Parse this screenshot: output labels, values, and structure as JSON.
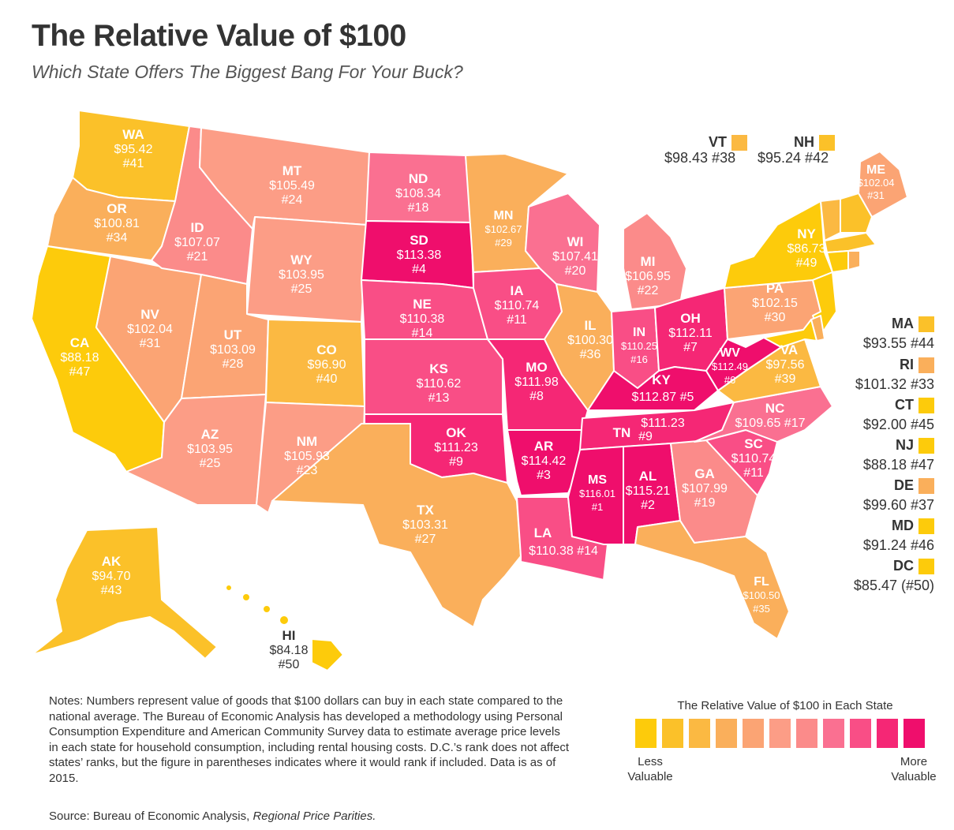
{
  "title": "The Relative Value of $100",
  "subtitle": "Which State Offers The Biggest Bang For Your Buck?",
  "colors": {
    "scale": [
      "#fdcb0b",
      "#fbc129",
      "#fbb942",
      "#faaf5b",
      "#fba474",
      "#fc9d86",
      "#fb8b8a",
      "#fa7091",
      "#f94e86",
      "#f52775",
      "#ef0e6c"
    ],
    "border": "#ffffff"
  },
  "states": {
    "WA": {
      "abbr": "WA",
      "value": "$95.42",
      "rank": "#41",
      "color": "#fbc129"
    },
    "OR": {
      "abbr": "OR",
      "value": "$100.81",
      "rank": "#34",
      "color": "#faaf5b"
    },
    "CA": {
      "abbr": "CA",
      "value": "$88.18",
      "rank": "#47",
      "color": "#fdcb0b"
    },
    "ID": {
      "abbr": "ID",
      "value": "$107.07",
      "rank": "#21",
      "color": "#fb8b8a"
    },
    "NV": {
      "abbr": "NV",
      "value": "$102.04",
      "rank": "#31",
      "color": "#fba474"
    },
    "MT": {
      "abbr": "MT",
      "value": "$105.49",
      "rank": "#24",
      "color": "#fc9d86"
    },
    "WY": {
      "abbr": "WY",
      "value": "$103.95",
      "rank": "#25",
      "color": "#fc9d86"
    },
    "UT": {
      "abbr": "UT",
      "value": "$103.09",
      "rank": "#28",
      "color": "#fba474"
    },
    "AZ": {
      "abbr": "AZ",
      "value": "$103.95",
      "rank": "#25",
      "color": "#fc9d86"
    },
    "CO": {
      "abbr": "CO",
      "value": "$96.90",
      "rank": "#40",
      "color": "#fbb942"
    },
    "NM": {
      "abbr": "NM",
      "value": "$105.93",
      "rank": "#23",
      "color": "#fc9d86"
    },
    "ND": {
      "abbr": "ND",
      "value": "$108.34",
      "rank": "#18",
      "color": "#fa7091"
    },
    "SD": {
      "abbr": "SD",
      "value": "$113.38",
      "rank": "#4",
      "color": "#ef0e6c"
    },
    "NE": {
      "abbr": "NE",
      "value": "$110.38",
      "rank": "#14",
      "color": "#f94e86"
    },
    "KS": {
      "abbr": "KS",
      "value": "$110.62",
      "rank": "#13",
      "color": "#f94e86"
    },
    "OK": {
      "abbr": "OK",
      "value": "$111.23",
      "rank": "#9",
      "color": "#f52775"
    },
    "TX": {
      "abbr": "TX",
      "value": "$103.31",
      "rank": "#27",
      "color": "#faaf5b"
    },
    "MN": {
      "abbr": "MN",
      "value": "$102.67",
      "rank": "#29",
      "color": "#faaf5b"
    },
    "IA": {
      "abbr": "IA",
      "value": "$110.74",
      "rank": "#11",
      "color": "#f94e86"
    },
    "MO": {
      "abbr": "MO",
      "value": "$111.98",
      "rank": "#8",
      "color": "#f52775"
    },
    "AR": {
      "abbr": "AR",
      "value": "$114.42",
      "rank": "#3",
      "color": "#ef0e6c"
    },
    "LA": {
      "abbr": "LA",
      "value": "$110.38",
      "rank": "#14",
      "color": "#f94e86"
    },
    "WI": {
      "abbr": "WI",
      "value": "$107.41",
      "rank": "#20",
      "color": "#fa7091"
    },
    "IL": {
      "abbr": "IL",
      "value": "$100.30",
      "rank": "#36",
      "color": "#faaf5b"
    },
    "MI": {
      "abbr": "MI",
      "value": "$106.95",
      "rank": "#22",
      "color": "#fb8b8a"
    },
    "IN": {
      "abbr": "IN",
      "value": "$110.25",
      "rank": "#16",
      "color": "#f94e86"
    },
    "OH": {
      "abbr": "OH",
      "value": "$112.11",
      "rank": "#7",
      "color": "#f52775"
    },
    "KY": {
      "abbr": "KY",
      "value": "$112.87",
      "rank": "#5",
      "color": "#ef0e6c"
    },
    "TN": {
      "abbr": "TN",
      "value": "$111.23",
      "rank": "#9",
      "color": "#f52775"
    },
    "MS": {
      "abbr": "MS",
      "value": "$116.01",
      "rank": "#1",
      "color": "#ef0e6c"
    },
    "AL": {
      "abbr": "AL",
      "value": "$115.21",
      "rank": "#2",
      "color": "#ef0e6c"
    },
    "GA": {
      "abbr": "GA",
      "value": "$107.99",
      "rank": "#19",
      "color": "#fb8b8a"
    },
    "FL": {
      "abbr": "FL",
      "value": "$100.50",
      "rank": "#35",
      "color": "#faaf5b"
    },
    "SC": {
      "abbr": "SC",
      "value": "$110.74",
      "rank": "#11",
      "color": "#f94e86"
    },
    "NC": {
      "abbr": "NC",
      "value": "$109.65",
      "rank": "#17",
      "color": "#fa7091"
    },
    "VA": {
      "abbr": "VA",
      "value": "$97.56",
      "rank": "#39",
      "color": "#fbb942"
    },
    "WV": {
      "abbr": "WV",
      "value": "$112.49",
      "rank": "#6",
      "color": "#ef0e6c"
    },
    "PA": {
      "abbr": "PA",
      "value": "$102.15",
      "rank": "#30",
      "color": "#fba474"
    },
    "NY": {
      "abbr": "NY",
      "value": "$86.73",
      "rank": "#49",
      "color": "#fdcb0b"
    },
    "ME": {
      "abbr": "ME",
      "value": "$102.04",
      "rank": "#31",
      "color": "#fba474"
    },
    "AK": {
      "abbr": "AK",
      "value": "$94.70",
      "rank": "#43",
      "color": "#fbc129"
    },
    "HI": {
      "abbr": "HI",
      "value": "$84.18",
      "rank": "#50",
      "color": "#fdcb0b"
    }
  },
  "small_states": {
    "VT": {
      "abbr": "VT",
      "value_rank": "$98.43 #38",
      "color": "#fbb942"
    },
    "NH": {
      "abbr": "NH",
      "value_rank": "$95.24 #42",
      "color": "#fbc129"
    },
    "MA": {
      "abbr": "MA",
      "value_rank": "$93.55 #44",
      "color": "#fbc129"
    },
    "RI": {
      "abbr": "RI",
      "value_rank": "$101.32 #33",
      "color": "#faaf5b"
    },
    "CT": {
      "abbr": "CT",
      "value_rank": "$92.00 #45",
      "color": "#fdcb0b"
    },
    "NJ": {
      "abbr": "NJ",
      "value_rank": "$88.18 #47",
      "color": "#fdcb0b"
    },
    "DE": {
      "abbr": "DE",
      "value_rank": "$99.60 #37",
      "color": "#faaf5b"
    },
    "MD": {
      "abbr": "MD",
      "value_rank": "$91.24 #46",
      "color": "#fdcb0b"
    },
    "DC": {
      "abbr": "DC",
      "value_rank": "$85.47 (#50)",
      "color": "#fdcb0b"
    }
  },
  "legend": {
    "title": "The Relative Value of $100 in Each State",
    "low_label": "Less Valuable",
    "high_label": "More Valuable"
  },
  "notes": "Notes: Numbers represent value of goods that $100 dollars can buy in each state compared to the national average. The Bureau of Economic Analysis has developed a methodology using Personal Consumption Expenditure and American Community Survey data to estimate average price levels in each state for household consumption, including rental housing costs. D.C.’s rank does not affect states’ ranks, but the figure in parentheses indicates where it would rank if included. Data is as of 2015.",
  "source": {
    "prefix": "Source: Bureau of Economic Analysis, ",
    "title": "Regional Price Parities."
  }
}
